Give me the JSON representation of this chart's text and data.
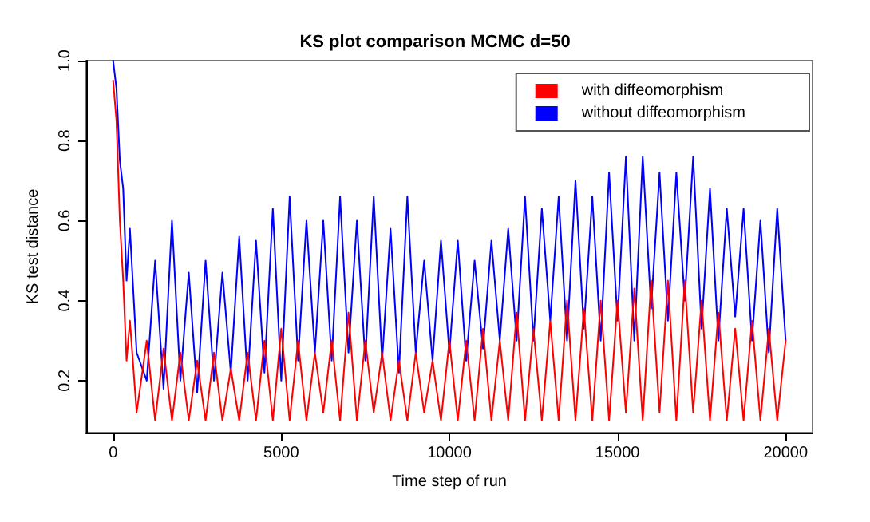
{
  "chart_data": {
    "type": "line",
    "title": "KS plot comparison MCMC d=50",
    "xlabel": "Time step of run",
    "ylabel": "KS test distance",
    "x": [
      0,
      100,
      200,
      300,
      400,
      500,
      700,
      1000,
      1250,
      1500,
      1750,
      2000,
      2250,
      2500,
      2750,
      3000,
      3250,
      3500,
      3750,
      4000,
      4250,
      4500,
      4750,
      5000,
      5250,
      5500,
      5750,
      6000,
      6250,
      6500,
      6750,
      7000,
      7250,
      7500,
      7750,
      8000,
      8250,
      8500,
      8750,
      9000,
      9250,
      9500,
      9750,
      10000,
      10250,
      10500,
      10750,
      11000,
      11250,
      11500,
      11750,
      12000,
      12250,
      12500,
      12750,
      13000,
      13250,
      13500,
      13750,
      14000,
      14250,
      14500,
      14750,
      15000,
      15250,
      15500,
      15750,
      16000,
      16250,
      16500,
      16750,
      17000,
      17250,
      17500,
      17750,
      18000,
      18250,
      18500,
      18750,
      19000,
      19250,
      19500,
      19750,
      20000
    ],
    "series": [
      {
        "name": "with diffeomorphism",
        "color": "#ff0000",
        "values": [
          0.95,
          0.85,
          0.6,
          0.45,
          0.25,
          0.35,
          0.12,
          0.3,
          0.1,
          0.28,
          0.1,
          0.27,
          0.1,
          0.25,
          0.1,
          0.27,
          0.1,
          0.23,
          0.1,
          0.27,
          0.1,
          0.3,
          0.1,
          0.33,
          0.1,
          0.3,
          0.1,
          0.27,
          0.12,
          0.3,
          0.1,
          0.37,
          0.1,
          0.3,
          0.12,
          0.27,
          0.1,
          0.25,
          0.1,
          0.27,
          0.12,
          0.25,
          0.1,
          0.3,
          0.1,
          0.3,
          0.1,
          0.33,
          0.1,
          0.3,
          0.1,
          0.37,
          0.1,
          0.33,
          0.1,
          0.35,
          0.1,
          0.4,
          0.1,
          0.38,
          0.1,
          0.4,
          0.1,
          0.4,
          0.12,
          0.43,
          0.1,
          0.45,
          0.12,
          0.45,
          0.1,
          0.45,
          0.12,
          0.4,
          0.1,
          0.37,
          0.1,
          0.33,
          0.1,
          0.35,
          0.1,
          0.33,
          0.1,
          0.3
        ]
      },
      {
        "name": "without diffeomorphism",
        "color": "#0000ff",
        "values": [
          1.0,
          0.93,
          0.75,
          0.68,
          0.45,
          0.58,
          0.27,
          0.2,
          0.5,
          0.18,
          0.6,
          0.2,
          0.47,
          0.17,
          0.5,
          0.2,
          0.47,
          0.22,
          0.56,
          0.2,
          0.55,
          0.22,
          0.63,
          0.2,
          0.66,
          0.25,
          0.6,
          0.27,
          0.6,
          0.25,
          0.66,
          0.27,
          0.6,
          0.25,
          0.66,
          0.25,
          0.58,
          0.22,
          0.66,
          0.27,
          0.5,
          0.25,
          0.55,
          0.27,
          0.55,
          0.25,
          0.5,
          0.28,
          0.55,
          0.3,
          0.58,
          0.3,
          0.66,
          0.3,
          0.63,
          0.35,
          0.66,
          0.3,
          0.7,
          0.33,
          0.66,
          0.3,
          0.72,
          0.35,
          0.76,
          0.3,
          0.76,
          0.38,
          0.72,
          0.35,
          0.72,
          0.4,
          0.76,
          0.33,
          0.68,
          0.3,
          0.63,
          0.36,
          0.63,
          0.3,
          0.6,
          0.27,
          0.63,
          0.3
        ]
      }
    ],
    "xlim": [
      -800,
      20800
    ],
    "xticks": [
      0,
      5000,
      10000,
      15000,
      20000
    ],
    "ylim": [
      0.07,
      1.0
    ],
    "yticks": [
      0.2,
      0.4,
      0.6,
      0.8,
      {
        "value": 1,
        "label": "1.0"
      }
    ],
    "grid": false,
    "legend": "top right",
    "marker": "none",
    "line_style": "solid"
  }
}
